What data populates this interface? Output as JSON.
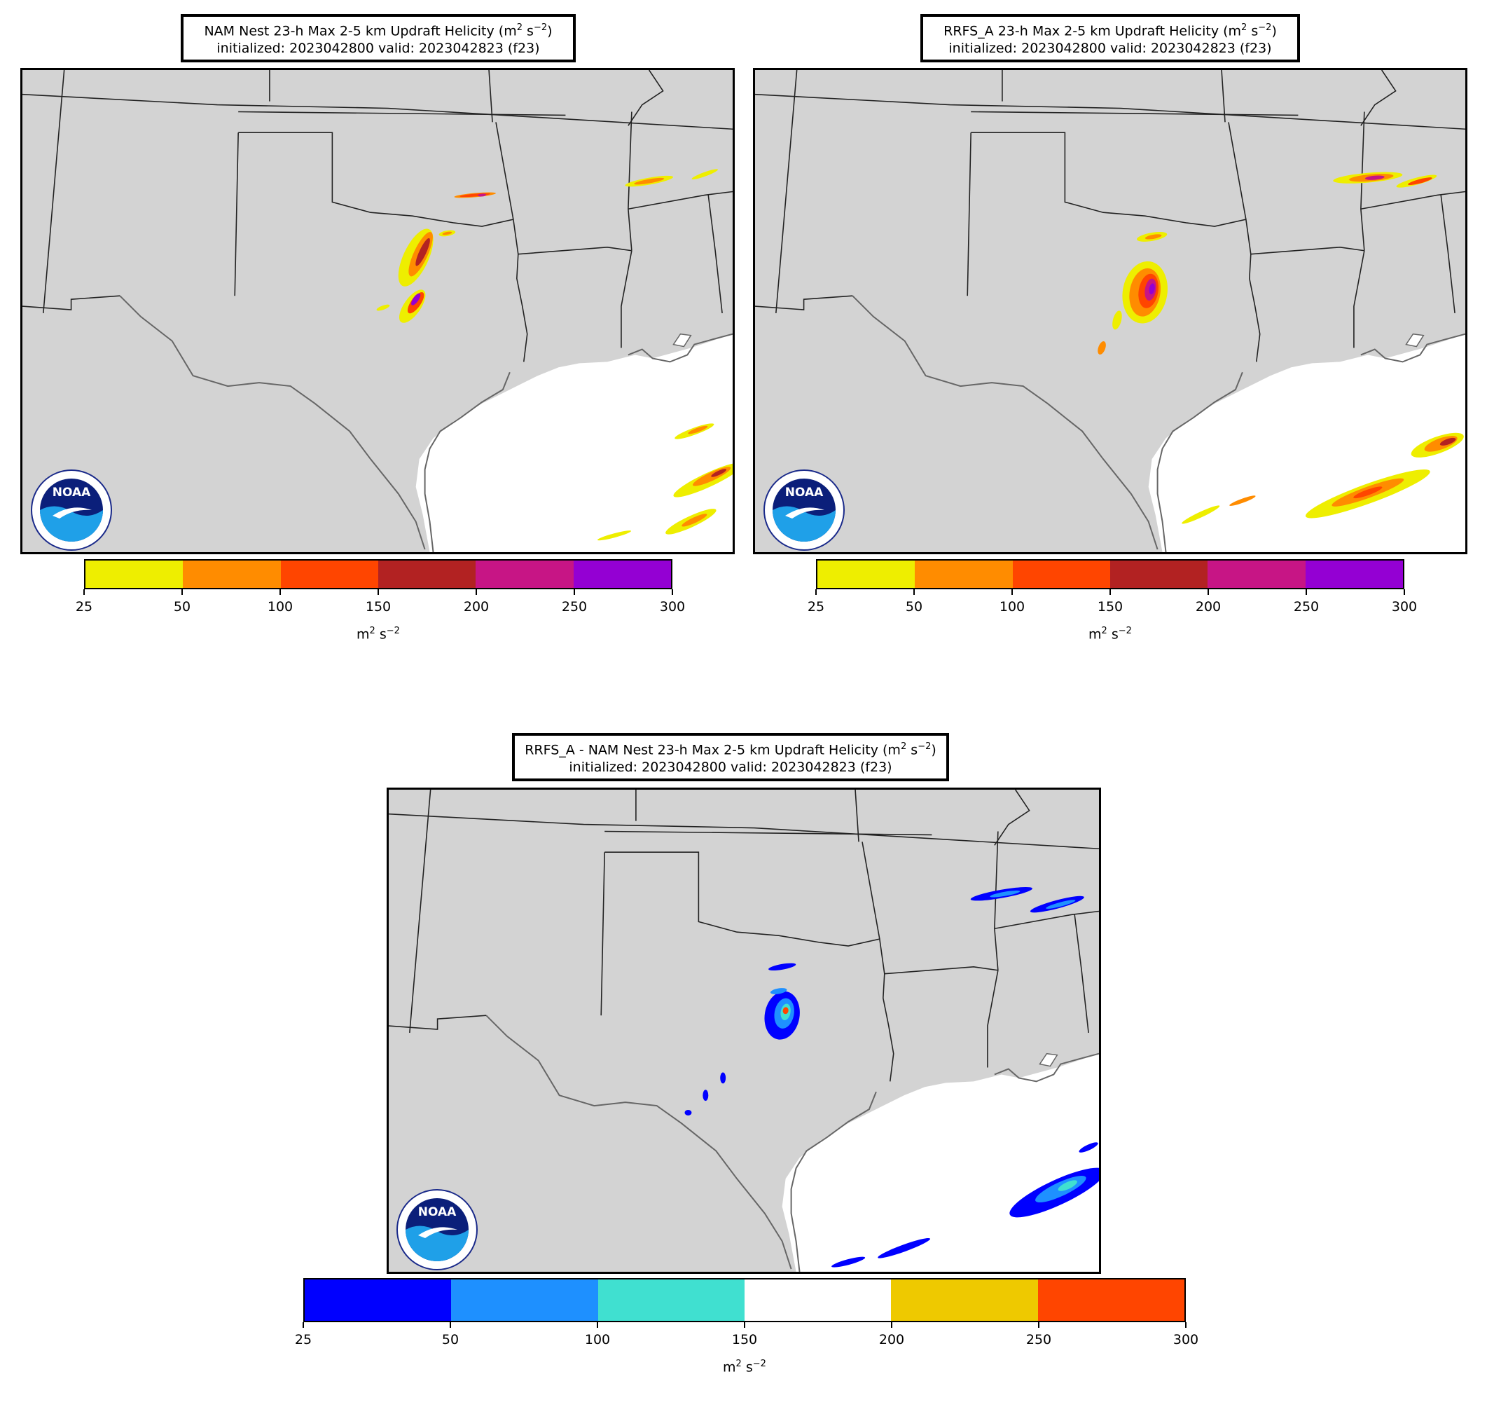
{
  "panels": [
    {
      "title_line1": "NAM Nest 23-h Max 2-5 km Updraft Helicity (m",
      "title_unit_exp": "2",
      "title_unit_mid": " s",
      "title_unit_exp2": "−2",
      "title_close": ")",
      "title_line2": "initialized: 2023042800 valid: 2023042823 (f23)",
      "colorbar": {
        "colors": [
          "#eeee00",
          "#ff8c00",
          "#ff4500",
          "#b22222",
          "#c71585",
          "#9400d3"
        ],
        "ticks": [
          "25",
          "50",
          "100",
          "150",
          "200",
          "250",
          "300"
        ],
        "unit_base": "m",
        "unit_exp": "2",
        "unit_mid": " s",
        "unit_exp2": "−2"
      }
    },
    {
      "title_line1": "RRFS_A 23-h Max 2-5 km Updraft Helicity (m",
      "title_unit_exp": "2",
      "title_unit_mid": " s",
      "title_unit_exp2": "−2",
      "title_close": ")",
      "title_line2": "initialized: 2023042800 valid: 2023042823 (f23)",
      "colorbar": {
        "colors": [
          "#eeee00",
          "#ff8c00",
          "#ff4500",
          "#b22222",
          "#c71585",
          "#9400d3"
        ],
        "ticks": [
          "25",
          "50",
          "100",
          "150",
          "200",
          "250",
          "300"
        ],
        "unit_base": "m",
        "unit_exp": "2",
        "unit_mid": " s",
        "unit_exp2": "−2"
      }
    },
    {
      "title_line1": "RRFS_A - NAM Nest 23-h Max 2-5 km Updraft Helicity (m",
      "title_unit_exp": "2",
      "title_unit_mid": " s",
      "title_unit_exp2": "−2",
      "title_close": ")",
      "title_line2": "initialized: 2023042800 valid: 2023042823 (f23)",
      "colorbar": {
        "colors": [
          "#0000ff",
          "#1e90ff",
          "#40e0d0",
          "#ffffff",
          "#eec900",
          "#ff4500"
        ],
        "ticks": [
          "25",
          "50",
          "100",
          "150",
          "200",
          "250",
          "300"
        ],
        "unit_base": "m",
        "unit_exp": "2",
        "unit_mid": " s",
        "unit_exp2": "−2"
      }
    }
  ],
  "logo": {
    "text": "NOAA",
    "ring_text": "NATIONAL OCEANIC AND ATMOSPHERIC ADMINISTRATION · U.S. DEPARTMENT OF COMMERCE"
  },
  "map_colors": {
    "land": "#d3d3d3",
    "water": "#ffffff",
    "border": "#222222",
    "coast": "#666666"
  }
}
